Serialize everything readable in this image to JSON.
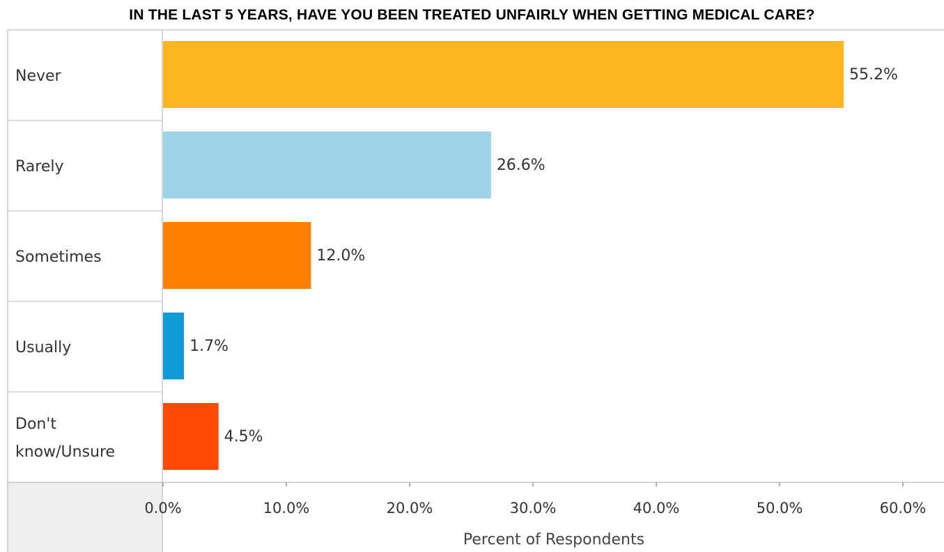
{
  "title": "IN THE LAST 5 YEARS, HAVE YOU BEEN TREATED UNFAIRLY WHEN GETTING MEDICAL CARE?",
  "chart_data": {
    "type": "bar",
    "orientation": "horizontal",
    "title": "IN THE LAST 5 YEARS, HAVE YOU BEEN TREATED UNFAIRLY WHEN GETTING MEDICAL CARE?",
    "categories": [
      {
        "lines": [
          "Never"
        ]
      },
      {
        "lines": [
          "Rarely"
        ]
      },
      {
        "lines": [
          "Sometimes"
        ]
      },
      {
        "lines": [
          "Usually"
        ]
      },
      {
        "lines": [
          "Don't",
          "know/Unsure"
        ]
      }
    ],
    "values": [
      55.2,
      26.6,
      12.0,
      1.7,
      4.5
    ],
    "value_labels": [
      "55.2%",
      "26.6%",
      "12.0%",
      "1.7%",
      "4.5%"
    ],
    "colors": [
      "#FDB520",
      "#9DD4E8",
      "#FF7F00",
      "#0E9BD8",
      "#FF4A05"
    ],
    "xlabel": "Percent of Respondents",
    "xlim": [
      0,
      60
    ],
    "xticks": [
      0,
      10,
      20,
      30,
      40,
      50,
      60
    ],
    "xtick_labels": [
      "0.0%",
      "10.0%",
      "20.0%",
      "30.0%",
      "40.0%",
      "50.0%",
      "60.0%"
    ],
    "grid": false
  }
}
